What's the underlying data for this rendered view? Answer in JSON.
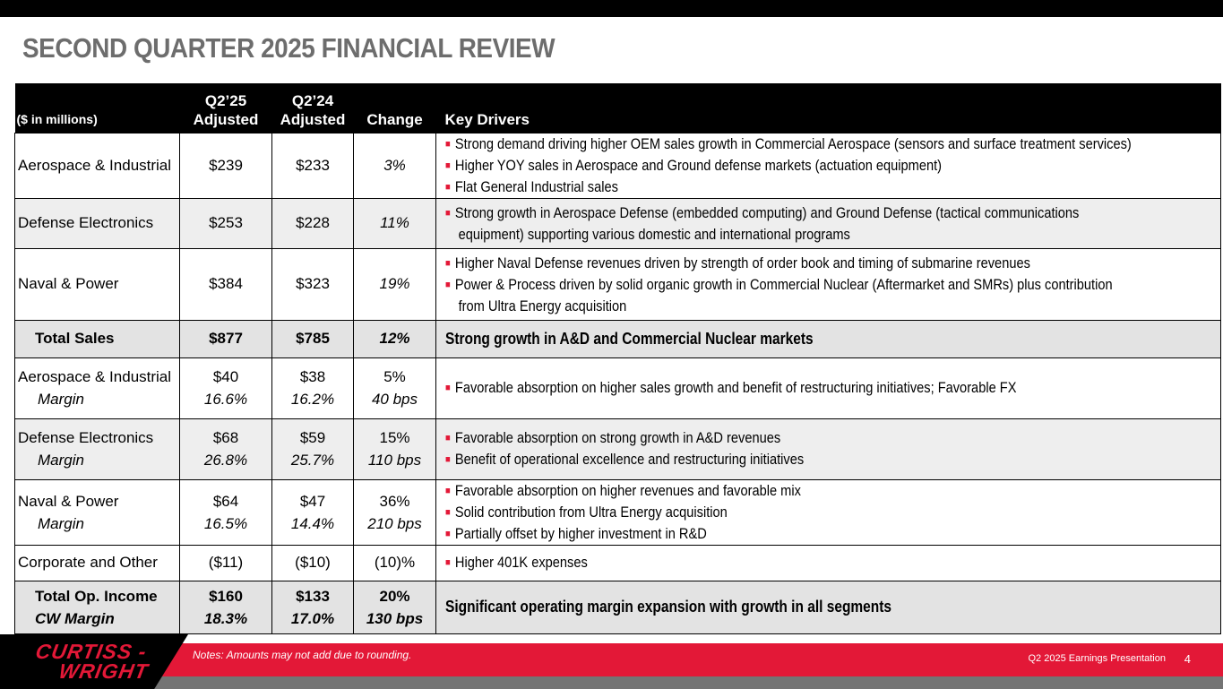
{
  "title": "SECOND QUARTER 2025 FINANCIAL REVIEW",
  "header": {
    "units": "($ in millions)",
    "c1a": "Q2’25",
    "c1b": "Adjusted",
    "c2a": "Q2’24",
    "c2b": "Adjusted",
    "c3": "Change",
    "c4": "Key Drivers"
  },
  "rows": [
    {
      "label": "Aerospace & Industrial",
      "q25": "$239",
      "q24": "$233",
      "chg": "3%",
      "drivers": [
        "Strong demand driving higher OEM sales growth in Commercial Aerospace (sensors and surface treatment services)",
        "Higher YOY sales in Aerospace and Ground defense markets (actuation equipment)",
        "Flat General Industrial sales"
      ]
    },
    {
      "label": "Defense Electronics",
      "q25": "$253",
      "q24": "$228",
      "chg": "11%",
      "drivers": [
        "Strong growth in Aerospace Defense (embedded computing) and Ground Defense (tactical communications",
        "equipment) supporting various domestic and international programs"
      ]
    },
    {
      "label": "Naval & Power",
      "q25": "$384",
      "q24": "$323",
      "chg": "19%",
      "drivers": [
        "Higher Naval Defense revenues driven by strength of order book and timing of submarine revenues",
        "Power & Process driven by solid organic growth in Commercial Nuclear (Aftermarket and SMRs) plus contribution",
        "from Ultra Energy acquisition"
      ]
    },
    {
      "label": "Total Sales",
      "q25": "$877",
      "q24": "$785",
      "chg": "12%",
      "drivers": [
        "Strong growth in A&D and Commercial Nuclear markets"
      ]
    },
    {
      "label": "Aerospace & Industrial",
      "sub": "Margin",
      "q25": "$40",
      "q25m": "16.6%",
      "q24": "$38",
      "q24m": "16.2%",
      "chg": "5%",
      "chgm": "40 bps",
      "drivers": [
        "Favorable absorption on higher sales growth and benefit of restructuring initiatives; Favorable FX"
      ]
    },
    {
      "label": "Defense Electronics",
      "sub": "Margin",
      "q25": "$68",
      "q25m": "26.8%",
      "q24": "$59",
      "q24m": "25.7%",
      "chg": "15%",
      "chgm": "110 bps",
      "drivers": [
        "Favorable absorption on strong growth in A&D revenues",
        "Benefit of operational excellence and restructuring initiatives"
      ]
    },
    {
      "label": "Naval & Power",
      "sub": "Margin",
      "q25": "$64",
      "q25m": "16.5%",
      "q24": "$47",
      "q24m": "14.4%",
      "chg": "36%",
      "chgm": "210 bps",
      "drivers": [
        "Favorable absorption on higher revenues and favorable mix",
        "Solid contribution from Ultra Energy acquisition",
        "Partially offset by higher investment in R&D"
      ]
    },
    {
      "label": "Corporate and Other",
      "q25": "($11)",
      "q24": "($10)",
      "chg": "(10)%",
      "drivers": [
        "Higher 401K expenses"
      ]
    },
    {
      "label": "Total Op. Income",
      "sub": "CW Margin",
      "q25": "$160",
      "q25m": "18.3%",
      "q24": "$133",
      "q24m": "17.0%",
      "chg": "20%",
      "chgm": "130 bps",
      "drivers": [
        "Significant operating margin expansion with growth in all segments"
      ]
    }
  ],
  "footer": {
    "logo_line1": "CURTISS -",
    "logo_line2": "WRIGHT",
    "note": "Notes: Amounts may not add due to rounding.",
    "presentation": "Q2 2025 Earnings Presentation",
    "page": "4"
  },
  "colors": {
    "accent": "#e31837",
    "title": "#6d6d6d"
  }
}
